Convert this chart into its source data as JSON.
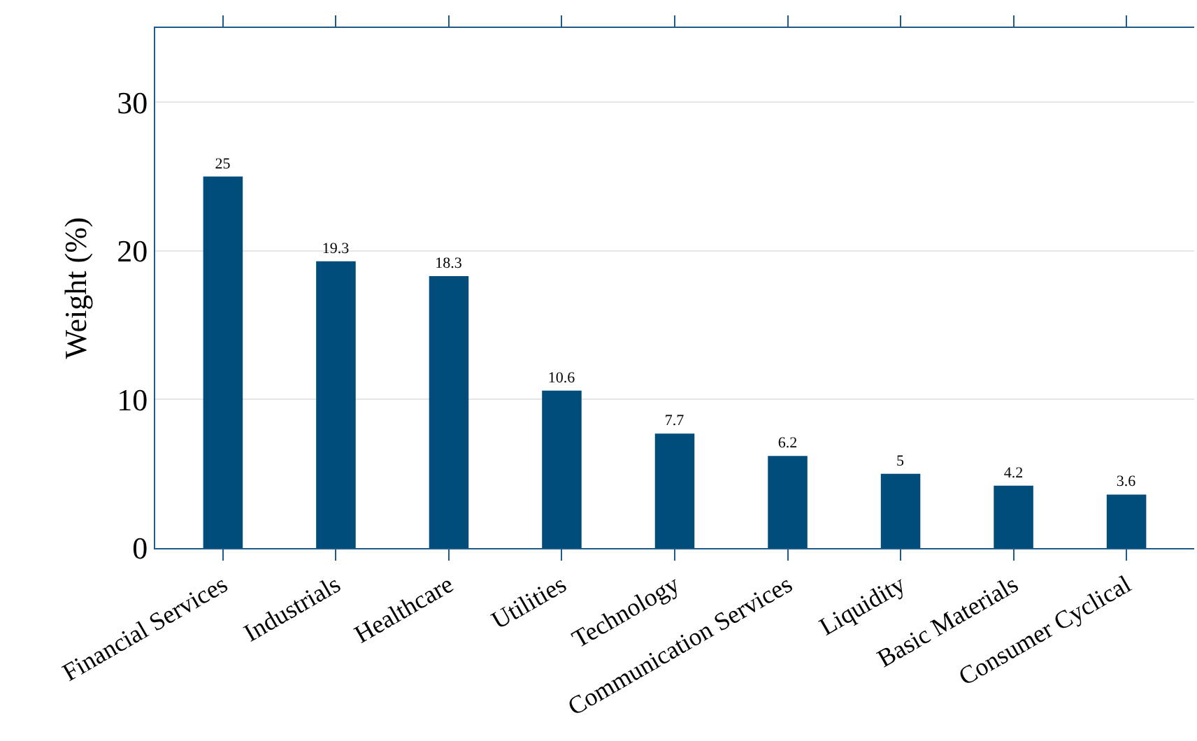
{
  "chart_data": {
    "type": "bar",
    "ylabel": "Weight (%)",
    "categories": [
      "Financial Services",
      "Industrials",
      "Healthcare",
      "Utilities",
      "Technology",
      "Communication Services",
      "Liquidity",
      "Basic Materials",
      "Consumer Cyclical"
    ],
    "values": [
      25,
      19.3,
      18.3,
      10.6,
      7.7,
      6.2,
      5,
      4.2,
      3.6
    ],
    "color": "#004c7a",
    "ylim": [
      0,
      35
    ],
    "yticks": [
      0,
      10,
      20,
      30
    ],
    "grid": "y",
    "data_labels": true
  }
}
